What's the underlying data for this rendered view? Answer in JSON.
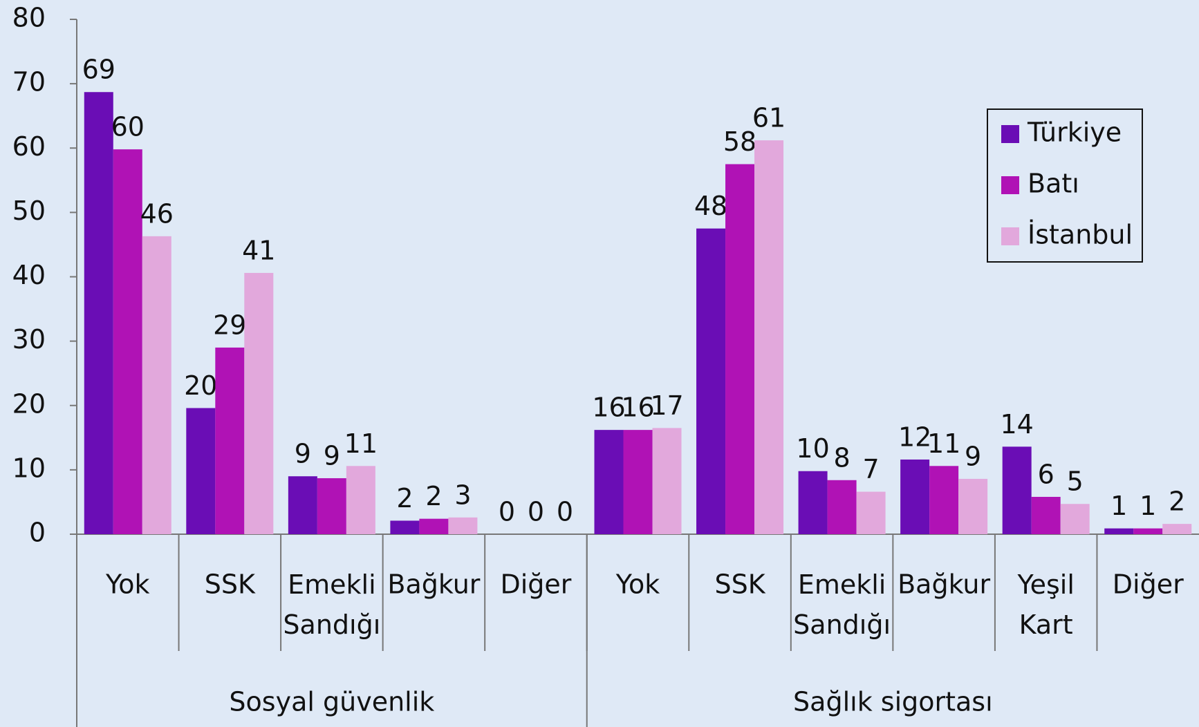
{
  "chart_data": {
    "type": "bar",
    "categories": [
      "Yok",
      "SSK",
      "Emekli Sandığı",
      "Bağkur",
      "Diğer",
      "Yok",
      "SSK",
      "Emekli Sandığı",
      "Bağkur",
      "Yeşil Kart",
      "Diğer"
    ],
    "groups": [
      {
        "name": "Sosyal güvenlik",
        "count": 5
      },
      {
        "name": "Sağlık sigortası",
        "count": 6
      }
    ],
    "series": [
      {
        "name": "Türkiye",
        "color": "#6a0db5",
        "values": [
          68.7,
          19.6,
          9,
          2.1,
          0,
          16.2,
          47.5,
          9.8,
          11.6,
          13.6,
          0.9
        ],
        "value_labels": [
          "69",
          "20",
          "9",
          "2",
          "0",
          "16",
          "48",
          "10",
          "12",
          "14",
          "1"
        ]
      },
      {
        "name": "Batı",
        "color": "#b012b5",
        "values": [
          59.8,
          29,
          8.7,
          2.4,
          0,
          16.2,
          57.5,
          8.4,
          10.6,
          5.8,
          0.9
        ],
        "value_labels": [
          "60",
          "29",
          "9",
          "2",
          "0",
          "16",
          "58",
          "8",
          "11",
          "6",
          "1"
        ]
      },
      {
        "name": "İstanbul",
        "color": "#e2a8dc",
        "values": [
          46.3,
          40.6,
          10.6,
          2.6,
          0,
          16.5,
          61.2,
          6.6,
          8.6,
          4.7,
          1.6
        ],
        "value_labels": [
          "46",
          "41",
          "11",
          "3",
          "0",
          "17",
          "61",
          "7",
          "9",
          "5",
          "2"
        ]
      }
    ],
    "ylim": [
      0,
      80
    ],
    "yticks": [
      0,
      10,
      20,
      30,
      40,
      50,
      60,
      70,
      80
    ],
    "legend": "upper right"
  }
}
